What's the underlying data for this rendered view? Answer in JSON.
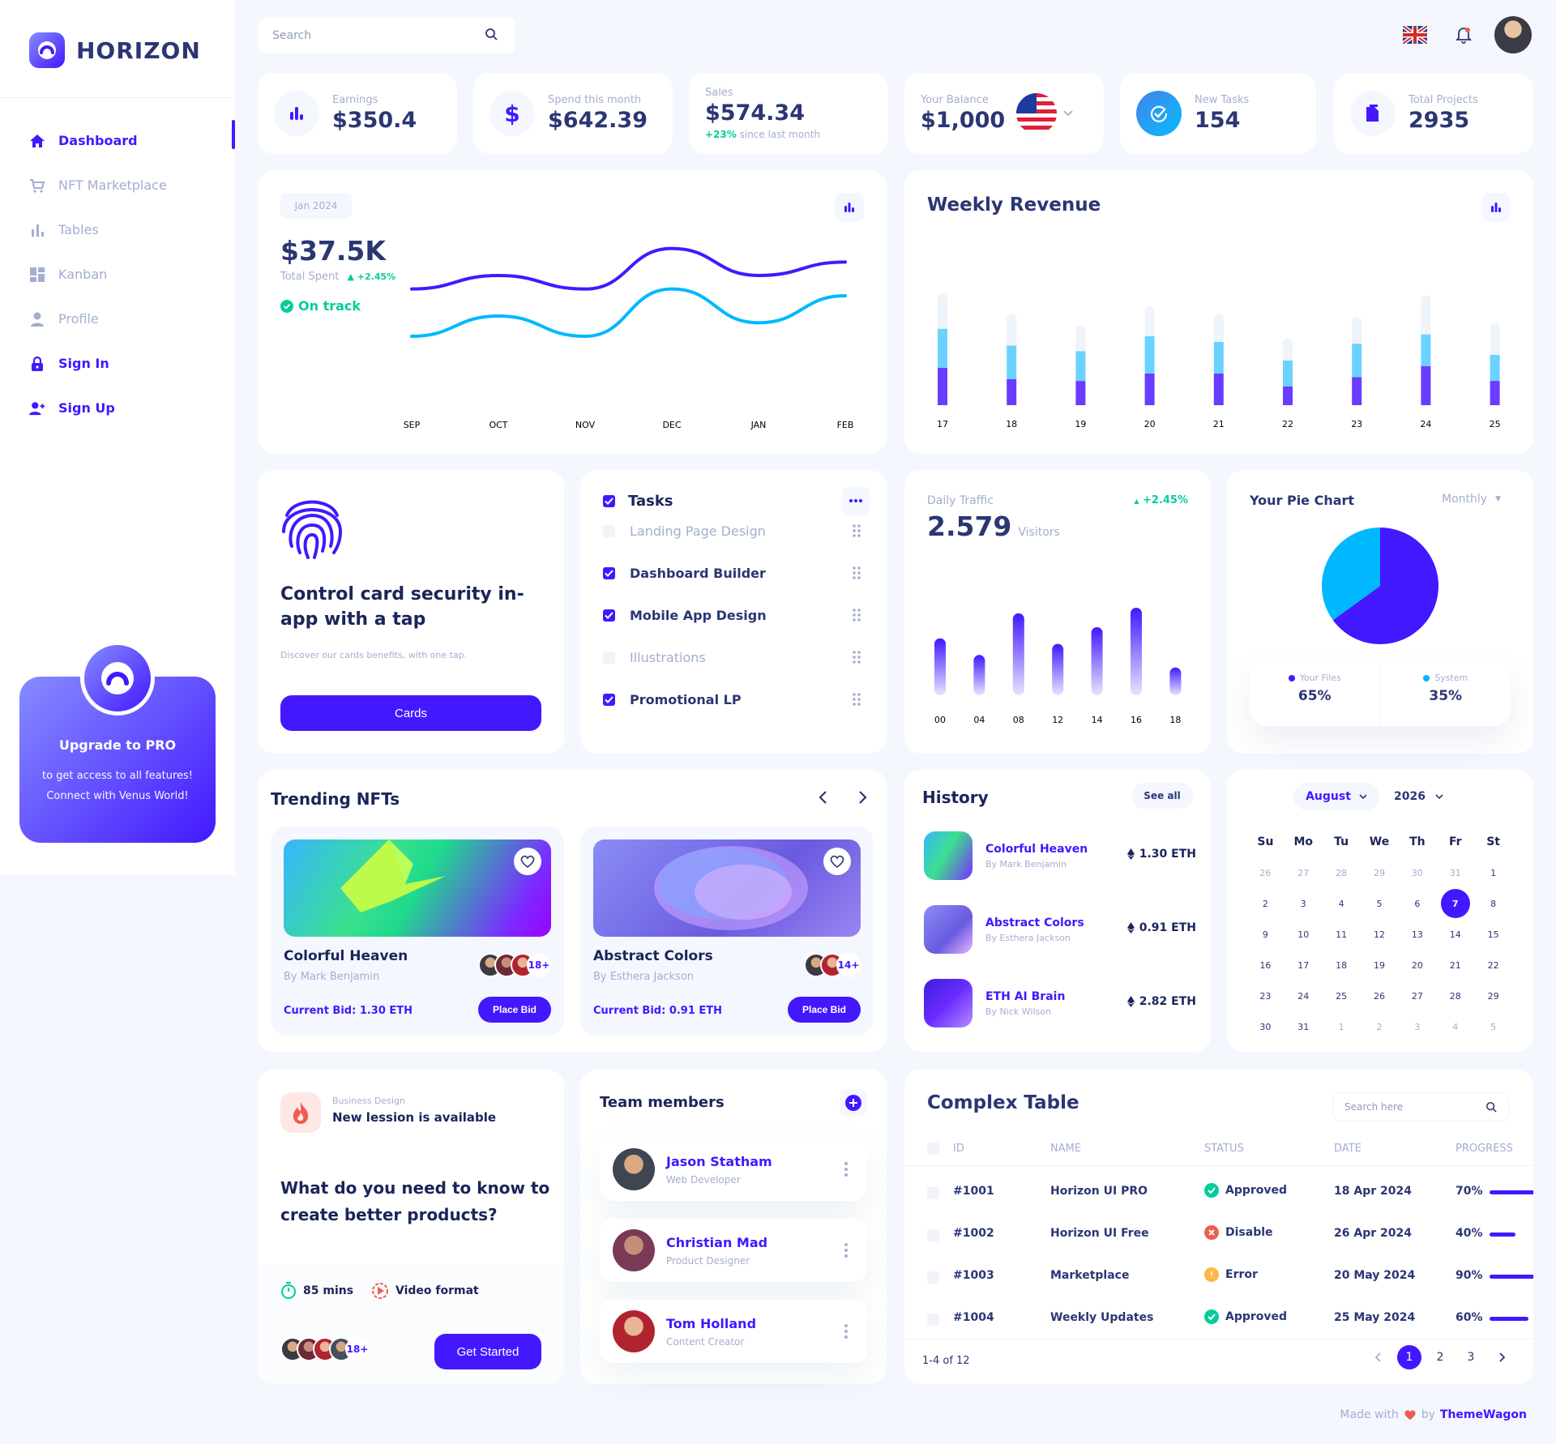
{
  "brand": {
    "name": "HORIZON"
  },
  "search": {
    "placeholder": "Search"
  },
  "nav": [
    {
      "label": "Dashboard"
    },
    {
      "label": "NFT Marketplace"
    },
    {
      "label": "Tables"
    },
    {
      "label": "Kanban"
    },
    {
      "label": "Profile"
    },
    {
      "label": "Sign In"
    },
    {
      "label": "Sign Up"
    }
  ],
  "upgrade": {
    "title": "Upgrade to PRO",
    "line1": "to get access to all features!",
    "line2": "Connect with Venus World!"
  },
  "stats": {
    "earnings": {
      "label": "Earnings",
      "value": "$350.4"
    },
    "spend": {
      "label": "Spend this month",
      "value": "$642.39"
    },
    "sales": {
      "label": "Sales",
      "value": "$574.34",
      "change": "+23%",
      "change_text": "since last month"
    },
    "balance": {
      "label": "Your Balance",
      "value": "$1,000"
    },
    "tasks": {
      "label": "New Tasks",
      "value": "154"
    },
    "projects": {
      "label": "Total Projects",
      "value": "2935"
    }
  },
  "spent": {
    "period": "Jan 2024",
    "value": "$37.5K",
    "label": "Total Spent",
    "change": "+2.45%",
    "status": "On track"
  },
  "weekly": {
    "title": "Weekly Revenue"
  },
  "security": {
    "title_1": "Control card security in-",
    "title_2": "app with a tap",
    "desc": "Discover our cards benefits, with one tap.",
    "button": "Cards"
  },
  "tasks": {
    "title": "Tasks",
    "items": [
      {
        "label": "Landing Page Design",
        "done": false
      },
      {
        "label": "Dashboard Builder",
        "done": true
      },
      {
        "label": "Mobile App Design",
        "done": true
      },
      {
        "label": "Illustrations",
        "done": false
      },
      {
        "label": "Promotional LP",
        "done": true
      }
    ]
  },
  "traffic": {
    "label": "Daily Traffic",
    "value": "2.579",
    "unit": "Visitors",
    "change": "+2.45%"
  },
  "pie": {
    "title": "Your Pie Chart",
    "period": "Monthly",
    "files_label": "Your Files",
    "files_value": "65%",
    "system_label": "System",
    "system_value": "35%"
  },
  "trending": {
    "title": "Trending NFTs",
    "items": [
      {
        "name": "Colorful Heaven",
        "by": "By Mark Benjamin",
        "bid": "Current Bid: 1.30 ETH",
        "more": "18+",
        "button": "Place Bid"
      },
      {
        "name": "Abstract Colors",
        "by": "By Esthera Jackson",
        "bid": "Current Bid: 0.91 ETH",
        "more": "14+",
        "button": "Place Bid"
      }
    ]
  },
  "history": {
    "title": "History",
    "see_all": "See all",
    "items": [
      {
        "name": "Colorful Heaven",
        "by": "By Mark Benjamin",
        "price": "1.30 ETH"
      },
      {
        "name": "Abstract Colors",
        "by": "By Esthera Jackson",
        "price": "0.91 ETH"
      },
      {
        "name": "ETH AI Brain",
        "by": "By Nick Wilson",
        "price": "2.82 ETH"
      }
    ]
  },
  "calendar": {
    "month": "August",
    "year": "2026",
    "days": [
      "Su",
      "Mo",
      "Tu",
      "We",
      "Th",
      "Fr",
      "St"
    ],
    "weeks": [
      [
        "26",
        "27",
        "28",
        "29",
        "30",
        "31",
        "1"
      ],
      [
        "2",
        "3",
        "4",
        "5",
        "6",
        "7",
        "8"
      ],
      [
        "9",
        "10",
        "11",
        "12",
        "13",
        "14",
        "15"
      ],
      [
        "16",
        "17",
        "18",
        "19",
        "20",
        "21",
        "22"
      ],
      [
        "23",
        "24",
        "25",
        "26",
        "27",
        "28",
        "29"
      ],
      [
        "30",
        "31",
        "1",
        "2",
        "3",
        "4",
        "5"
      ]
    ],
    "selected": "7"
  },
  "lesson": {
    "category": "Business Design",
    "title": "New lession is available",
    "question_1": "What do you need to know to",
    "question_2": "create better products?",
    "duration": "85 mins",
    "format": "Video format",
    "more": "18+",
    "button": "Get Started"
  },
  "team": {
    "title": "Team members",
    "members": [
      {
        "name": "Jason Statham",
        "role": "Web Developer"
      },
      {
        "name": "Christian Mad",
        "role": "Product Designer"
      },
      {
        "name": "Tom Holland",
        "role": "Content Creator"
      }
    ]
  },
  "table": {
    "title": "Complex Table",
    "search_placeholder": "Search here",
    "headers": [
      "ID",
      "NAME",
      "STATUS",
      "DATE",
      "PROGRESS"
    ],
    "rows": [
      {
        "id": "#1001",
        "name": "Horizon UI PRO",
        "status": "Approved",
        "date": "18 Apr 2024",
        "progress": "70%"
      },
      {
        "id": "#1002",
        "name": "Horizon UI Free",
        "status": "Disable",
        "date": "26 Apr 2024",
        "progress": "40%"
      },
      {
        "id": "#1003",
        "name": "Marketplace",
        "status": "Error",
        "date": "20 May 2024",
        "progress": "90%"
      },
      {
        "id": "#1004",
        "name": "Weekly Updates",
        "status": "Approved",
        "date": "25 May 2024",
        "progress": "60%"
      }
    ],
    "footer": "1-4 of 12",
    "pages": [
      "1",
      "2",
      "3"
    ]
  },
  "footer": {
    "prefix": "Made with",
    "by": "by",
    "brand": "ThemeWagon"
  },
  "colors": {
    "brand": "#4318ff",
    "accent": "#39b8ff",
    "success": "#05cd99",
    "danger": "#ee5d50",
    "warning": "#ffb547",
    "title": "#2b3674",
    "muted": "#a3aed0"
  },
  "chart_data": [
    {
      "type": "line",
      "categories": [
        "SEP",
        "OCT",
        "NOV",
        "DEC",
        "JAN",
        "FEB"
      ],
      "series": [
        {
          "values": [
            100,
            120,
            100,
            160,
            120,
            140
          ]
        },
        {
          "values": [
            30,
            60,
            30,
            100,
            50,
            90
          ]
        }
      ]
    },
    {
      "type": "bar",
      "title": "Weekly Revenue",
      "categories": [
        "17",
        "18",
        "19",
        "20",
        "21",
        "22",
        "23",
        "24",
        "25"
      ],
      "series": [
        {
          "values": [
            40,
            28,
            26,
            34,
            34,
            20,
            30,
            42,
            26
          ]
        },
        {
          "values": [
            42,
            36,
            32,
            40,
            34,
            28,
            36,
            34,
            28
          ]
        },
        {
          "values": [
            38,
            34,
            28,
            32,
            30,
            24,
            28,
            42,
            34
          ]
        }
      ]
    },
    {
      "type": "bar",
      "title": "Daily Traffic",
      "categories": [
        "00",
        "04",
        "08",
        "12",
        "14",
        "16",
        "18"
      ],
      "values": [
        82,
        58,
        118,
        74,
        98,
        126,
        40
      ]
    },
    {
      "type": "pie",
      "title": "Your Pie Chart",
      "categories": [
        "Your Files",
        "System"
      ],
      "values": [
        65,
        35
      ]
    }
  ]
}
